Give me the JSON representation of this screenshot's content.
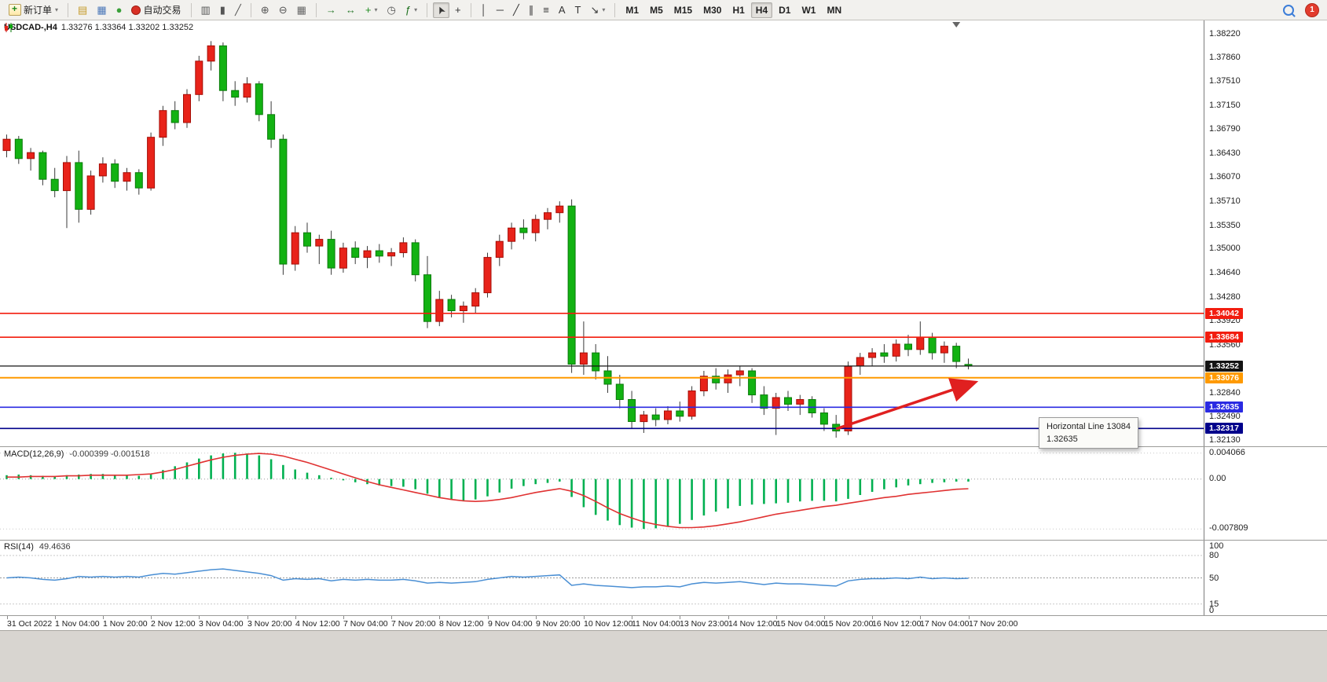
{
  "toolbar": {
    "notification_count": "1",
    "groups": [
      {
        "name": "trade",
        "items": [
          {
            "name": "new-order",
            "label": "新订单",
            "icon": "neworder",
            "dropdown": true
          }
        ]
      },
      {
        "name": "panels",
        "items": [
          {
            "name": "market-watch",
            "glyph": "▤",
            "color": "#c59a2a"
          },
          {
            "name": "navigator",
            "glyph": "▦",
            "color": "#4a77b8"
          },
          {
            "name": "terminal",
            "glyph": "●",
            "color": "#3aa03a"
          },
          {
            "name": "autotrading",
            "label": "自动交易",
            "icon": "autotrade"
          }
        ]
      },
      {
        "name": "chart-type",
        "items": [
          {
            "name": "bar-chart",
            "glyph": "▥",
            "color": "#555555"
          },
          {
            "name": "candlestick-chart",
            "glyph": "▮",
            "color": "#555555"
          },
          {
            "name": "line-chart",
            "glyph": "╱",
            "color": "#555555"
          }
        ]
      },
      {
        "name": "zoom",
        "items": [
          {
            "name": "zoom-in",
            "glyph": "⊕",
            "color": "#555555"
          },
          {
            "name": "zoom-out",
            "glyph": "⊖",
            "color": "#555555"
          },
          {
            "name": "tile-windows",
            "glyph": "▦",
            "color": "#666666"
          }
        ]
      },
      {
        "name": "chart-tools",
        "items": [
          {
            "name": "auto-scroll",
            "glyph": "→",
            "color": "#2e7d32"
          },
          {
            "name": "chart-shift",
            "glyph": "↔",
            "color": "#2e7d32"
          },
          {
            "name": "new-chart",
            "glyph": "+",
            "color": "#1c8a1c",
            "dropdown": true
          },
          {
            "name": "period-clock",
            "glyph": "◷",
            "color": "#555555"
          },
          {
            "name": "indicators",
            "glyph": "ƒ",
            "color": "#1a6e1a",
            "dropdown": true
          }
        ]
      },
      {
        "name": "cursor-tools",
        "items": [
          {
            "name": "cursor",
            "glyph": "➤",
            "color": "#333333",
            "cls": "rot-cursor",
            "active": true
          },
          {
            "name": "crosshair",
            "glyph": "+",
            "color": "#333333"
          }
        ]
      },
      {
        "name": "line-tools",
        "items": [
          {
            "name": "vertical-line",
            "glyph": "│",
            "color": "#333333"
          },
          {
            "name": "horizontal-line",
            "glyph": "─",
            "color": "#333333"
          },
          {
            "name": "trendline",
            "glyph": "╱",
            "color": "#333333"
          },
          {
            "name": "equidistant-channel",
            "glyph": "∥",
            "color": "#333333"
          },
          {
            "name": "fibonacci",
            "glyph": "≡",
            "color": "#333333"
          },
          {
            "name": "text",
            "glyph": "A",
            "color": "#333333"
          },
          {
            "name": "text-label",
            "glyph": "T",
            "color": "#333333"
          },
          {
            "name": "arrows",
            "glyph": "↘",
            "color": "#333333",
            "dropdown": true
          }
        ]
      },
      {
        "name": "timeframes",
        "items": [
          {
            "name": "tf-m1",
            "label": "M1",
            "tf": true
          },
          {
            "name": "tf-m5",
            "label": "M5",
            "tf": true
          },
          {
            "name": "tf-m15",
            "label": "M15",
            "tf": true
          },
          {
            "name": "tf-m30",
            "label": "M30",
            "tf": true
          },
          {
            "name": "tf-h1",
            "label": "H1",
            "tf": true
          },
          {
            "name": "tf-h4",
            "label": "H4",
            "tf": true,
            "active": true
          },
          {
            "name": "tf-d1",
            "label": "D1",
            "tf": true
          },
          {
            "name": "tf-w1",
            "label": "W1",
            "tf": true
          },
          {
            "name": "tf-mn",
            "label": "MN",
            "tf": true
          }
        ]
      }
    ]
  },
  "chart": {
    "title": "USDCAD-,H4",
    "ohlc_text": "1.33276 1.33364 1.33202 1.33252"
  },
  "tooltip": {
    "line1": "Horizontal Line 13084",
    "line2": "1.32635"
  },
  "chart_data": {
    "type": "candlestick",
    "symbol": "USDCAD",
    "period": "H4",
    "current_ohlc": {
      "open": 1.33276,
      "high": 1.33364,
      "low": 1.33202,
      "close": 1.33252
    },
    "ylim": [
      1.3205,
      1.3843
    ],
    "colors": {
      "bull": "#e8231a",
      "bear": "#12b212",
      "bull_border": "#a50d05",
      "bear_border": "#0a7a0a",
      "wick": "#3a3a3a"
    },
    "price_ticks": [
      "1.38220",
      "1.37860",
      "1.37510",
      "1.37150",
      "1.36790",
      "1.36430",
      "1.36070",
      "1.35710",
      "1.35350",
      "1.35000",
      "1.34640",
      "1.34280",
      "1.33920",
      "1.33560",
      "1.32840",
      "1.32490",
      "1.32130"
    ],
    "hlines": [
      {
        "label": "1.34042",
        "value": 1.34042,
        "color": "#f21d0f",
        "width": 1.6
      },
      {
        "label": "1.33684",
        "value": 1.33684,
        "color": "#f21d0f",
        "width": 1.6
      },
      {
        "label": "1.33252",
        "value": 1.33252,
        "color": "#141414",
        "width": 1.2
      },
      {
        "label": "1.33076",
        "value": 1.33076,
        "color": "#ff9a00",
        "width": 2
      },
      {
        "label": "1.32635",
        "value": 1.32635,
        "color": "#2a2ae2",
        "width": 1.6
      },
      {
        "label": "1.32317",
        "value": 1.32317,
        "color": "#00008b",
        "width": 1.6
      }
    ],
    "trend_arrow": {
      "from": {
        "index": 69,
        "price": 1.3231
      },
      "to": {
        "index": 80.4,
        "price": 1.33
      },
      "color": "#e02020"
    },
    "time_labels": [
      "31 Oct 2022",
      "1 Nov 04:00",
      "1 Nov 20:00",
      "2 Nov 12:00",
      "3 Nov 04:00",
      "3 Nov 20:00",
      "4 Nov 12:00",
      "7 Nov 04:00",
      "7 Nov 20:00",
      "8 Nov 12:00",
      "9 Nov 04:00",
      "9 Nov 20:00",
      "10 Nov 12:00",
      "11 Nov 04:00",
      "13 Nov 23:00",
      "14 Nov 12:00",
      "15 Nov 04:00",
      "15 Nov 20:00",
      "16 Nov 12:00",
      "17 Nov 04:00",
      "17 Nov 20:00"
    ],
    "candles": [
      [
        1.3648,
        1.3672,
        1.3638,
        1.3665
      ],
      [
        1.3665,
        1.367,
        1.3628,
        1.3636
      ],
      [
        1.3636,
        1.3652,
        1.3618,
        1.3645
      ],
      [
        1.3645,
        1.3648,
        1.3596,
        1.3605
      ],
      [
        1.3605,
        1.3622,
        1.3578,
        1.3588
      ],
      [
        1.3588,
        1.364,
        1.3532,
        1.363
      ],
      [
        1.363,
        1.3648,
        1.354,
        1.356
      ],
      [
        1.356,
        1.3618,
        1.3552,
        1.361
      ],
      [
        1.361,
        1.3638,
        1.36,
        1.3628
      ],
      [
        1.3628,
        1.3635,
        1.3592,
        1.3602
      ],
      [
        1.3602,
        1.3622,
        1.3588,
        1.3615
      ],
      [
        1.3615,
        1.362,
        1.3582,
        1.3592
      ],
      [
        1.3592,
        1.3675,
        1.3588,
        1.3668
      ],
      [
        1.3668,
        1.3715,
        1.3655,
        1.3708
      ],
      [
        1.3708,
        1.3722,
        1.368,
        1.369
      ],
      [
        1.369,
        1.374,
        1.3682,
        1.3732
      ],
      [
        1.3732,
        1.379,
        1.3722,
        1.3782
      ],
      [
        1.3782,
        1.3812,
        1.3768,
        1.3805
      ],
      [
        1.3805,
        1.381,
        1.3722,
        1.3738
      ],
      [
        1.3738,
        1.3752,
        1.3715,
        1.3728
      ],
      [
        1.3728,
        1.3758,
        1.372,
        1.3748
      ],
      [
        1.3748,
        1.3752,
        1.3692,
        1.3702
      ],
      [
        1.3702,
        1.3722,
        1.3652,
        1.3665
      ],
      [
        1.3665,
        1.3672,
        1.3462,
        1.3478
      ],
      [
        1.3478,
        1.3535,
        1.3468,
        1.3525
      ],
      [
        1.3525,
        1.354,
        1.3495,
        1.3505
      ],
      [
        1.3505,
        1.3522,
        1.3478,
        1.3515
      ],
      [
        1.3515,
        1.3528,
        1.3462,
        1.3472
      ],
      [
        1.3472,
        1.351,
        1.3465,
        1.3502
      ],
      [
        1.3502,
        1.3512,
        1.3478,
        1.3488
      ],
      [
        1.3488,
        1.3505,
        1.3472,
        1.3498
      ],
      [
        1.3498,
        1.3508,
        1.348,
        1.349
      ],
      [
        1.349,
        1.3502,
        1.3475,
        1.3495
      ],
      [
        1.3495,
        1.3518,
        1.3488,
        1.351
      ],
      [
        1.351,
        1.3515,
        1.3452,
        1.3462
      ],
      [
        1.3462,
        1.349,
        1.3382,
        1.3392
      ],
      [
        1.3392,
        1.3438,
        1.3385,
        1.3425
      ],
      [
        1.3425,
        1.3432,
        1.3398,
        1.3408
      ],
      [
        1.3408,
        1.3422,
        1.339,
        1.3415
      ],
      [
        1.3415,
        1.3442,
        1.3405,
        1.3435
      ],
      [
        1.3435,
        1.3495,
        1.3428,
        1.3488
      ],
      [
        1.3488,
        1.3522,
        1.3475,
        1.3512
      ],
      [
        1.3512,
        1.354,
        1.35,
        1.3532
      ],
      [
        1.3532,
        1.3545,
        1.3515,
        1.3525
      ],
      [
        1.3525,
        1.3552,
        1.3512,
        1.3545
      ],
      [
        1.3545,
        1.3562,
        1.353,
        1.3555
      ],
      [
        1.3555,
        1.3572,
        1.354,
        1.3565
      ],
      [
        1.3565,
        1.3575,
        1.3315,
        1.3328
      ],
      [
        1.3328,
        1.3392,
        1.3312,
        1.3345
      ],
      [
        1.3345,
        1.3358,
        1.3305,
        1.3318
      ],
      [
        1.3318,
        1.334,
        1.3285,
        1.3298
      ],
      [
        1.3298,
        1.3312,
        1.3262,
        1.3275
      ],
      [
        1.3275,
        1.3288,
        1.3232,
        1.3242
      ],
      [
        1.3242,
        1.3258,
        1.3225,
        1.3252
      ],
      [
        1.3252,
        1.3262,
        1.3235,
        1.3245
      ],
      [
        1.3245,
        1.3265,
        1.3238,
        1.3258
      ],
      [
        1.3258,
        1.3272,
        1.3242,
        1.325
      ],
      [
        1.325,
        1.3295,
        1.3245,
        1.3288
      ],
      [
        1.3288,
        1.3318,
        1.328,
        1.331
      ],
      [
        1.331,
        1.3322,
        1.329,
        1.33
      ],
      [
        1.33,
        1.332,
        1.3285,
        1.3312
      ],
      [
        1.3312,
        1.3325,
        1.3295,
        1.3318
      ],
      [
        1.3318,
        1.3322,
        1.327,
        1.3282
      ],
      [
        1.3282,
        1.3295,
        1.3252,
        1.3262
      ],
      [
        1.3262,
        1.3285,
        1.3222,
        1.3278
      ],
      [
        1.3278,
        1.3288,
        1.3258,
        1.3268
      ],
      [
        1.3268,
        1.3282,
        1.3252,
        1.3275
      ],
      [
        1.3275,
        1.328,
        1.3248,
        1.3255
      ],
      [
        1.3255,
        1.3262,
        1.3228,
        1.3238
      ],
      [
        1.3238,
        1.3252,
        1.3218,
        1.3228
      ],
      [
        1.3228,
        1.3332,
        1.3222,
        1.3325
      ],
      [
        1.3325,
        1.3345,
        1.3312,
        1.3338
      ],
      [
        1.3338,
        1.3352,
        1.3325,
        1.3345
      ],
      [
        1.3345,
        1.3358,
        1.333,
        1.334
      ],
      [
        1.334,
        1.3365,
        1.3332,
        1.3358
      ],
      [
        1.3358,
        1.3372,
        1.334,
        1.335
      ],
      [
        1.335,
        1.3392,
        1.3342,
        1.3368
      ],
      [
        1.3368,
        1.3375,
        1.3335,
        1.3345
      ],
      [
        1.3345,
        1.3362,
        1.333,
        1.3355
      ],
      [
        1.3355,
        1.336,
        1.3322,
        1.3332
      ],
      [
        1.33276,
        1.33364,
        1.33202,
        1.33252
      ]
    ],
    "macd": {
      "label": "MACD(12,26,9)",
      "values_text": "-0.000399 -0.001518",
      "ylim": [
        -0.0095,
        0.005
      ],
      "grid_values": [
        0.004066,
        0,
        -0.007809
      ],
      "axis_labels": [
        "0.004066",
        "0.00",
        "-0.007809"
      ],
      "histogram_color": "#00b050",
      "signal_color": "#e03232",
      "histogram": [
        0.0006,
        0.0007,
        0.0006,
        0.0005,
        0.0004,
        0.0006,
        0.0007,
        0.0008,
        0.0008,
        0.0007,
        0.0006,
        0.0005,
        0.0008,
        0.0014,
        0.002,
        0.0026,
        0.0032,
        0.0037,
        0.004,
        0.0041,
        0.004,
        0.0037,
        0.0031,
        0.0022,
        0.0015,
        0.001,
        0.0006,
        0.0002,
        -0.0002,
        -0.0005,
        -0.0008,
        -0.001,
        -0.0011,
        -0.0012,
        -0.0016,
        -0.0023,
        -0.0029,
        -0.0032,
        -0.0034,
        -0.0032,
        -0.0027,
        -0.0021,
        -0.0015,
        -0.0011,
        -0.0008,
        -0.0006,
        -0.0004,
        -0.0028,
        -0.0044,
        -0.0056,
        -0.0065,
        -0.0072,
        -0.0076,
        -0.0078,
        -0.0077,
        -0.0074,
        -0.007,
        -0.0064,
        -0.0057,
        -0.0051,
        -0.0046,
        -0.0042,
        -0.004,
        -0.0039,
        -0.0038,
        -0.0037,
        -0.0035,
        -0.0034,
        -0.0034,
        -0.0035,
        -0.0031,
        -0.0025,
        -0.002,
        -0.0016,
        -0.0013,
        -0.001,
        -0.0008,
        -0.0006,
        -0.0005,
        -0.0004,
        -0.000399
      ],
      "signal": [
        0.0003,
        0.0003,
        0.0004,
        0.0004,
        0.0004,
        0.0005,
        0.0005,
        0.0006,
        0.0006,
        0.0006,
        0.0006,
        0.0007,
        0.0008,
        0.0011,
        0.0015,
        0.002,
        0.0025,
        0.003,
        0.0034,
        0.0037,
        0.0039,
        0.004,
        0.0039,
        0.0036,
        0.0031,
        0.0026,
        0.002,
        0.0014,
        0.0008,
        0.0002,
        -0.0004,
        -0.0009,
        -0.0013,
        -0.0017,
        -0.0021,
        -0.0025,
        -0.0029,
        -0.0032,
        -0.0034,
        -0.0035,
        -0.0034,
        -0.0032,
        -0.0029,
        -0.0025,
        -0.0021,
        -0.0018,
        -0.0015,
        -0.0019,
        -0.0026,
        -0.0035,
        -0.0045,
        -0.0054,
        -0.0061,
        -0.0067,
        -0.0071,
        -0.0074,
        -0.0076,
        -0.0076,
        -0.0075,
        -0.0073,
        -0.007,
        -0.0067,
        -0.0063,
        -0.0059,
        -0.0055,
        -0.0052,
        -0.0049,
        -0.0046,
        -0.0043,
        -0.0041,
        -0.0038,
        -0.0035,
        -0.0032,
        -0.0029,
        -0.0027,
        -0.0024,
        -0.0022,
        -0.002,
        -0.0018,
        -0.0016,
        -0.001518
      ]
    },
    "rsi": {
      "label": "RSI(14)",
      "value_text": "49.4636",
      "ylim": [
        0,
        100
      ],
      "levels": [
        100,
        80,
        50,
        15,
        0
      ],
      "grid_levels": [
        80,
        50,
        15
      ],
      "line_color": "#4a8fd4",
      "values": [
        50,
        51,
        50,
        48,
        47,
        49,
        52,
        51,
        52,
        51,
        52,
        51,
        54,
        56,
        55,
        57,
        59,
        61,
        62,
        60,
        58,
        56,
        53,
        47,
        49,
        48,
        49,
        46,
        48,
        47,
        48,
        47,
        47,
        48,
        46,
        43,
        44,
        43,
        44,
        45,
        48,
        50,
        52,
        51,
        52,
        53,
        54,
        40,
        42,
        40,
        39,
        38,
        37,
        38,
        38,
        39,
        38,
        42,
        44,
        43,
        44,
        45,
        43,
        41,
        43,
        42,
        42,
        41,
        40,
        39,
        46,
        48,
        49,
        49,
        50,
        49,
        51,
        49,
        50,
        49,
        49.4636
      ]
    }
  }
}
